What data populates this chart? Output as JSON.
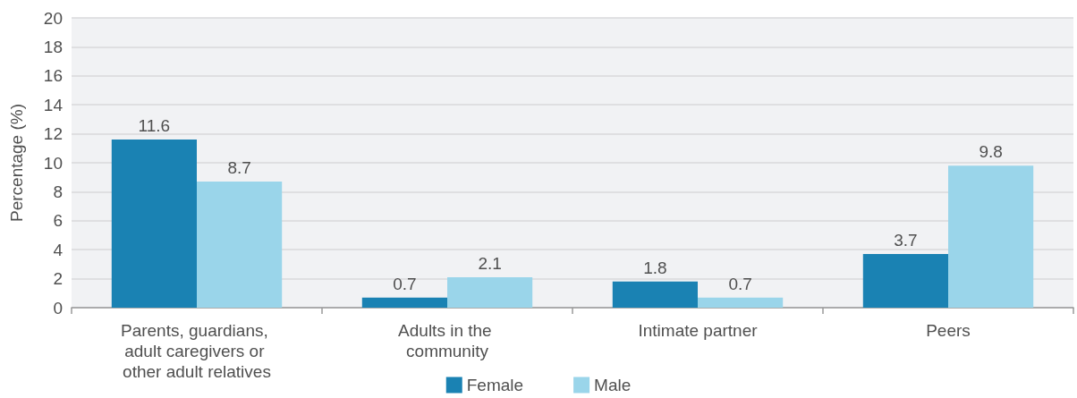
{
  "chart_data": {
    "type": "bar",
    "ylabel": "Percentage (%)",
    "categories": [
      "Parents, guardians, adult caregivers or other adult relatives",
      "Adults in the community",
      "Intimate partner",
      "Peers"
    ],
    "series": [
      {
        "name": "Female",
        "color": "#1a82b3",
        "values": [
          11.6,
          0.7,
          1.8,
          3.7
        ]
      },
      {
        "name": "Male",
        "color": "#9ad5ea",
        "values": [
          8.7,
          2.1,
          0.7,
          9.8
        ]
      }
    ],
    "ylim": [
      0,
      20
    ],
    "yticks": [
      0,
      2,
      4,
      6,
      8,
      10,
      12,
      14,
      16,
      18,
      20
    ],
    "grid": "y",
    "legend": "bottom",
    "data_labels": true
  }
}
